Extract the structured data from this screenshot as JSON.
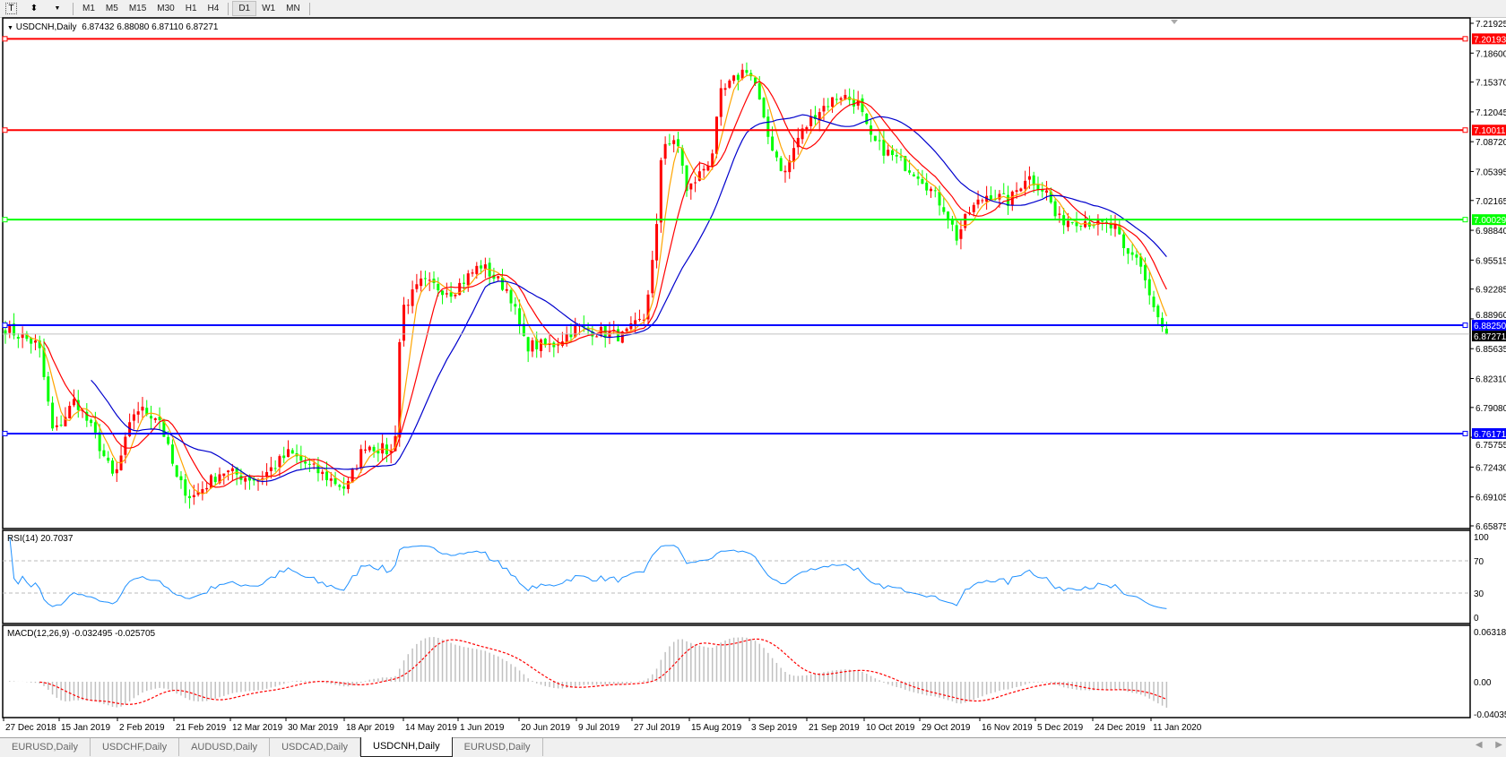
{
  "toolbar": {
    "icons": [
      "text-tool-icon",
      "shapes-tool-icon",
      "dropdown-arrow-icon"
    ],
    "text_tool": "T",
    "timeframes": [
      "M1",
      "M5",
      "M15",
      "M30",
      "H1",
      "H4",
      "D1",
      "W1",
      "MN"
    ],
    "active_timeframe": "D1"
  },
  "chart": {
    "symbol_label": "USDCNH,Daily",
    "ohlc": "6.87432 6.88080 6.87110 6.87271",
    "candle_up_color": "#ff0000",
    "candle_down_color": "#00ff00",
    "price_ticks": [
      "7.21925",
      "7.18600",
      "7.15370",
      "7.12045",
      "7.08720",
      "7.05395",
      "7.02165",
      "6.98840",
      "6.95515",
      "6.92285",
      "6.88960",
      "6.85635",
      "6.82310",
      "6.79080",
      "6.75755",
      "6.72430",
      "6.69105",
      "6.65875"
    ],
    "horizontal_lines": [
      {
        "price": 7.20193,
        "label": "7.20193",
        "color": "#ff0000"
      },
      {
        "price": 7.10011,
        "label": "7.10011",
        "color": "#ff0000"
      },
      {
        "price": 7.00029,
        "label": "7.00029",
        "color": "#00ff00"
      },
      {
        "price": 6.8825,
        "label": "6.88250",
        "color": "#0000ff"
      },
      {
        "price": 6.76171,
        "label": "6.76171",
        "color": "#0000ff"
      }
    ],
    "current_price": {
      "price": 6.87271,
      "label": "6.87271"
    },
    "moving_average_colors": [
      "#ffa500",
      "#ff0000",
      "#0000cd"
    ],
    "date_ticks": [
      "27 Dec 2018",
      "15 Jan 2019",
      "2 Feb 2019",
      "21 Feb 2019",
      "12 Mar 2019",
      "30 Mar 2019",
      "18 Apr 2019",
      "14 May 2019",
      "1 Jun 2019",
      "20 Jun 2019",
      "9 Jul 2019",
      "27 Jul 2019",
      "15 Aug 2019",
      "3 Sep 2019",
      "21 Sep 2019",
      "10 Oct 2019",
      "29 Oct 2019",
      "16 Nov 2019",
      "5 Dec 2019",
      "24 Dec 2019",
      "11 Jan 2020"
    ]
  },
  "chart_data": {
    "type": "candlestick",
    "title": "USDCNH,Daily",
    "ylim": [
      6.65875,
      7.21925
    ],
    "close_path": [
      [
        "27 Dec 2018",
        6.88
      ],
      [
        "8 Jan 2019",
        6.86
      ],
      [
        "13 Jan 2019",
        6.76
      ],
      [
        "20 Jan 2019",
        6.8
      ],
      [
        "26 Jan 2019",
        6.76
      ],
      [
        "1 Feb 2019",
        6.71
      ],
      [
        "8 Feb 2019",
        6.79
      ],
      [
        "16 Feb 2019",
        6.78
      ],
      [
        "22 Feb 2019",
        6.71
      ],
      [
        "27 Feb 2019",
        6.69
      ],
      [
        "9 Mar 2019",
        6.72
      ],
      [
        "21 Mar 2019",
        6.71
      ],
      [
        "31 Mar 2019",
        6.74
      ],
      [
        "9 Apr 2019",
        6.72
      ],
      [
        "19 Apr 2019",
        6.7
      ],
      [
        "27 Apr 2019",
        6.75
      ],
      [
        "10 May 2019",
        6.74
      ],
      [
        "13 May 2019",
        6.9
      ],
      [
        "20 May 2019",
        6.93
      ],
      [
        "30 May 2019",
        6.92
      ],
      [
        "8 Jun 2019",
        6.95
      ],
      [
        "17 Jun 2019",
        6.92
      ],
      [
        "22 Jun 2019",
        6.86
      ],
      [
        "1 Jul 2019",
        6.86
      ],
      [
        "9 Jul 2019",
        6.88
      ],
      [
        "24 Jul 2019",
        6.87
      ],
      [
        "31 Jul 2019",
        6.89
      ],
      [
        "4 Aug 2019",
        6.98
      ],
      [
        "6 Aug 2019",
        7.09
      ],
      [
        "12 Aug 2019",
        7.08
      ],
      [
        "14 Aug 2019",
        7.03
      ],
      [
        "22 Aug 2019",
        7.07
      ],
      [
        "25 Aug 2019",
        7.14
      ],
      [
        "2 Sep 2019",
        7.17
      ],
      [
        "5 Sep 2019",
        7.15
      ],
      [
        "8 Sep 2019",
        7.1
      ],
      [
        "14 Sep 2019",
        7.05
      ],
      [
        "18 Sep 2019",
        7.09
      ],
      [
        "24 Sep 2019",
        7.12
      ],
      [
        "2 Oct 2019",
        7.14
      ],
      [
        "8 Oct 2019",
        7.13
      ],
      [
        "12 Oct 2019",
        7.09
      ],
      [
        "20 Oct 2019",
        7.07
      ],
      [
        "29 Oct 2019",
        7.05
      ],
      [
        "6 Nov 2019",
        7.01
      ],
      [
        "9 Nov 2019",
        6.98
      ],
      [
        "13 Nov 2019",
        7.01
      ],
      [
        "19 Nov 2019",
        7.03
      ],
      [
        "26 Nov 2019",
        7.02
      ],
      [
        "2 Dec 2019",
        7.05
      ],
      [
        "9 Dec 2019",
        7.03
      ],
      [
        "12 Dec 2019",
        7.0
      ],
      [
        "21 Dec 2019",
        7.0
      ],
      [
        "31 Dec 2019",
        6.99
      ],
      [
        "3 Jan 2020",
        6.96
      ],
      [
        "7 Jan 2020",
        6.96
      ],
      [
        "11 Jan 2020",
        6.91
      ],
      [
        "14 Jan 2020",
        6.88
      ],
      [
        "16 Jan 2020",
        6.87271
      ]
    ]
  },
  "rsi": {
    "label": "RSI(14) 20.7037",
    "ticks": [
      "100",
      "70",
      "30",
      "0"
    ],
    "color": "#1e90ff"
  },
  "macd": {
    "label": "MACD(12,26,9) -0.032495 -0.025705",
    "ticks": [
      "0.063184",
      "0.00",
      "-0.04035"
    ],
    "histogram_color": "#c0c0c0",
    "signal_color": "#ff0000"
  },
  "tabs": [
    {
      "label": "EURUSD,Daily",
      "active": false
    },
    {
      "label": "USDCHF,Daily",
      "active": false
    },
    {
      "label": "AUDUSD,Daily",
      "active": false
    },
    {
      "label": "USDCAD,Daily",
      "active": false
    },
    {
      "label": "USDCNH,Daily",
      "active": true
    },
    {
      "label": "EURUSD,Daily",
      "active": false
    }
  ]
}
